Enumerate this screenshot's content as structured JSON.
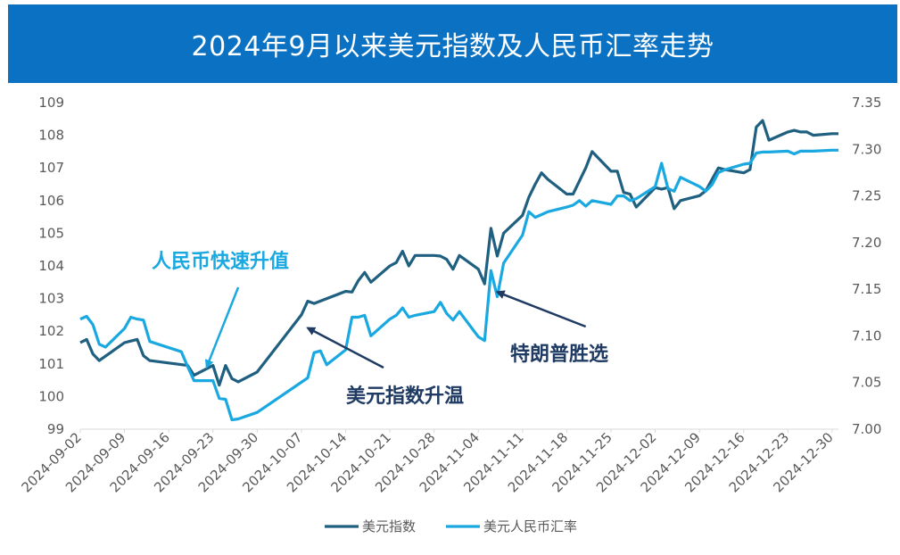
{
  "title": "2024年9月以来美元指数及人民币汇率走势",
  "chart_data": {
    "type": "line",
    "title": "2024年9月以来美元指数及人民币汇率走势",
    "x_range": [
      "2024-09-02",
      "2024-12-31"
    ],
    "x_tick_labels": [
      "2024-09-02",
      "2024-09-09",
      "2024-09-16",
      "2024-09-23",
      "2024-09-30",
      "2024-10-07",
      "2024-10-14",
      "2024-10-21",
      "2024-10-28",
      "2024-11-04",
      "2024-11-11",
      "2024-11-18",
      "2024-11-25",
      "2024-12-02",
      "2024-12-09",
      "2024-12-16",
      "2024-12-23",
      "2024-12-30"
    ],
    "y_left": {
      "range": [
        99,
        109
      ],
      "ticks": [
        99,
        100,
        101,
        102,
        103,
        104,
        105,
        106,
        107,
        108,
        109
      ]
    },
    "y_right": {
      "range": [
        7.0,
        7.35
      ],
      "ticks": [
        "7.00",
        "7.05",
        "7.10",
        "7.15",
        "7.20",
        "7.25",
        "7.30",
        "7.35"
      ]
    },
    "grid": false,
    "legend_position": "bottom",
    "series": [
      {
        "name": "美元指数",
        "axis": "left",
        "color": "#1f5f80",
        "points": [
          [
            "2024-09-02",
            101.65
          ],
          [
            "2024-09-03",
            101.75
          ],
          [
            "2024-09-04",
            101.3
          ],
          [
            "2024-09-05",
            101.1
          ],
          [
            "2024-09-09",
            101.65
          ],
          [
            "2024-09-10",
            101.7
          ],
          [
            "2024-09-11",
            101.75
          ],
          [
            "2024-09-12",
            101.25
          ],
          [
            "2024-09-13",
            101.1
          ],
          [
            "2024-09-19",
            100.95
          ],
          [
            "2024-09-20",
            100.65
          ],
          [
            "2024-09-23",
            100.95
          ],
          [
            "2024-09-24",
            100.35
          ],
          [
            "2024-09-25",
            100.95
          ],
          [
            "2024-09-26",
            100.55
          ],
          [
            "2024-09-27",
            100.45
          ],
          [
            "2024-09-30",
            100.75
          ],
          [
            "2024-10-07",
            102.5
          ],
          [
            "2024-10-08",
            102.92
          ],
          [
            "2024-10-09",
            102.85
          ],
          [
            "2024-10-14",
            103.22
          ],
          [
            "2024-10-15",
            103.2
          ],
          [
            "2024-10-16",
            103.55
          ],
          [
            "2024-10-17",
            103.8
          ],
          [
            "2024-10-18",
            103.5
          ],
          [
            "2024-10-21",
            104.0
          ],
          [
            "2024-10-22",
            104.1
          ],
          [
            "2024-10-23",
            104.45
          ],
          [
            "2024-10-24",
            104.0
          ],
          [
            "2024-10-25",
            104.32
          ],
          [
            "2024-10-28",
            104.32
          ],
          [
            "2024-10-29",
            104.3
          ],
          [
            "2024-10-30",
            104.2
          ],
          [
            "2024-10-31",
            103.9
          ],
          [
            "2024-11-01",
            104.32
          ],
          [
            "2024-11-04",
            103.9
          ],
          [
            "2024-11-05",
            103.45
          ],
          [
            "2024-11-06",
            105.15
          ],
          [
            "2024-11-07",
            104.3
          ],
          [
            "2024-11-08",
            105.0
          ],
          [
            "2024-11-11",
            105.55
          ],
          [
            "2024-11-12",
            106.1
          ],
          [
            "2024-11-13",
            106.5
          ],
          [
            "2024-11-14",
            106.85
          ],
          [
            "2024-11-15",
            106.65
          ],
          [
            "2024-11-18",
            106.2
          ],
          [
            "2024-11-19",
            106.2
          ],
          [
            "2024-11-20",
            106.6
          ],
          [
            "2024-11-21",
            107.0
          ],
          [
            "2024-11-22",
            107.5
          ],
          [
            "2024-11-25",
            106.9
          ],
          [
            "2024-11-26",
            106.9
          ],
          [
            "2024-11-27",
            106.25
          ],
          [
            "2024-11-28",
            106.2
          ],
          [
            "2024-11-29",
            105.8
          ],
          [
            "2024-12-02",
            106.4
          ],
          [
            "2024-12-03",
            106.35
          ],
          [
            "2024-12-04",
            106.4
          ],
          [
            "2024-12-05",
            105.75
          ],
          [
            "2024-12-06",
            106.0
          ],
          [
            "2024-12-09",
            106.15
          ],
          [
            "2024-12-10",
            106.3
          ],
          [
            "2024-12-11",
            106.65
          ],
          [
            "2024-12-12",
            107.0
          ],
          [
            "2024-12-13",
            106.95
          ],
          [
            "2024-12-16",
            106.85
          ],
          [
            "2024-12-17",
            106.95
          ],
          [
            "2024-12-18",
            108.25
          ],
          [
            "2024-12-19",
            108.45
          ],
          [
            "2024-12-20",
            107.85
          ],
          [
            "2024-12-23",
            108.1
          ],
          [
            "2024-12-24",
            108.15
          ],
          [
            "2024-12-25",
            108.1
          ],
          [
            "2024-12-26",
            108.1
          ],
          [
            "2024-12-27",
            108.0
          ],
          [
            "2024-12-30",
            108.05
          ],
          [
            "2024-12-31",
            108.05
          ]
        ]
      },
      {
        "name": "美元人民币汇率",
        "axis": "right",
        "color": "#1aa8e0",
        "points": [
          [
            "2024-09-02",
            7.118
          ],
          [
            "2024-09-03",
            7.121
          ],
          [
            "2024-09-04",
            7.112
          ],
          [
            "2024-09-05",
            7.091
          ],
          [
            "2024-09-06",
            7.088
          ],
          [
            "2024-09-09",
            7.108
          ],
          [
            "2024-09-10",
            7.12
          ],
          [
            "2024-09-11",
            7.118
          ],
          [
            "2024-09-12",
            7.117
          ],
          [
            "2024-09-13",
            7.094
          ],
          [
            "2024-09-18",
            7.083
          ],
          [
            "2024-09-19",
            7.067
          ],
          [
            "2024-09-20",
            7.052
          ],
          [
            "2024-09-23",
            7.052
          ],
          [
            "2024-09-24",
            7.033
          ],
          [
            "2024-09-25",
            7.032
          ],
          [
            "2024-09-26",
            7.01
          ],
          [
            "2024-09-27",
            7.011
          ],
          [
            "2024-09-30",
            7.018
          ],
          [
            "2024-10-08",
            7.055
          ],
          [
            "2024-10-09",
            7.082
          ],
          [
            "2024-10-10",
            7.084
          ],
          [
            "2024-10-11",
            7.069
          ],
          [
            "2024-10-14",
            7.085
          ],
          [
            "2024-10-15",
            7.12
          ],
          [
            "2024-10-16",
            7.12
          ],
          [
            "2024-10-17",
            7.122
          ],
          [
            "2024-10-18",
            7.1
          ],
          [
            "2024-10-21",
            7.118
          ],
          [
            "2024-10-22",
            7.122
          ],
          [
            "2024-10-23",
            7.13
          ],
          [
            "2024-10-24",
            7.12
          ],
          [
            "2024-10-25",
            7.122
          ],
          [
            "2024-10-28",
            7.126
          ],
          [
            "2024-10-29",
            7.136
          ],
          [
            "2024-10-30",
            7.124
          ],
          [
            "2024-10-31",
            7.117
          ],
          [
            "2024-11-01",
            7.126
          ],
          [
            "2024-11-04",
            7.099
          ],
          [
            "2024-11-05",
            7.095
          ],
          [
            "2024-11-06",
            7.17
          ],
          [
            "2024-11-07",
            7.142
          ],
          [
            "2024-11-08",
            7.178
          ],
          [
            "2024-11-11",
            7.208
          ],
          [
            "2024-11-12",
            7.233
          ],
          [
            "2024-11-13",
            7.227
          ],
          [
            "2024-11-14",
            7.23
          ],
          [
            "2024-11-15",
            7.233
          ],
          [
            "2024-11-18",
            7.238
          ],
          [
            "2024-11-19",
            7.24
          ],
          [
            "2024-11-20",
            7.245
          ],
          [
            "2024-11-21",
            7.239
          ],
          [
            "2024-11-22",
            7.245
          ],
          [
            "2024-11-25",
            7.241
          ],
          [
            "2024-11-26",
            7.25
          ],
          [
            "2024-11-27",
            7.25
          ],
          [
            "2024-11-28",
            7.245
          ],
          [
            "2024-11-29",
            7.247
          ],
          [
            "2024-12-02",
            7.26
          ],
          [
            "2024-12-03",
            7.285
          ],
          [
            "2024-12-04",
            7.258
          ],
          [
            "2024-12-05",
            7.255
          ],
          [
            "2024-12-06",
            7.27
          ],
          [
            "2024-12-09",
            7.26
          ],
          [
            "2024-12-10",
            7.255
          ],
          [
            "2024-12-11",
            7.262
          ],
          [
            "2024-12-12",
            7.275
          ],
          [
            "2024-12-13",
            7.278
          ],
          [
            "2024-12-16",
            7.284
          ],
          [
            "2024-12-17",
            7.285
          ],
          [
            "2024-12-18",
            7.296
          ],
          [
            "2024-12-19",
            7.297
          ],
          [
            "2024-12-20",
            7.297
          ],
          [
            "2024-12-23",
            7.298
          ],
          [
            "2024-12-24",
            7.295
          ],
          [
            "2024-12-25",
            7.298
          ],
          [
            "2024-12-26",
            7.298
          ],
          [
            "2024-12-27",
            7.298
          ],
          [
            "2024-12-30",
            7.299
          ],
          [
            "2024-12-31",
            7.299
          ]
        ]
      }
    ],
    "annotations": [
      {
        "text": "人民币快速升值",
        "color": "#1aa8e0",
        "arrow_to": [
          "2024-09-22",
          100.9
        ],
        "label_anchor": [
          "2024-09-06",
          104.1
        ]
      },
      {
        "text": "美元指数升温",
        "color": "#1f3a63",
        "arrow_to": [
          "2024-10-08",
          102.1
        ],
        "label_anchor": [
          "2024-10-10",
          100.0
        ]
      },
      {
        "text": "特朗普胜选",
        "color": "#1f3a63",
        "arrow_to": [
          "2024-11-07",
          103.2
        ],
        "label_anchor": [
          "2024-11-05",
          101.3
        ]
      }
    ]
  }
}
